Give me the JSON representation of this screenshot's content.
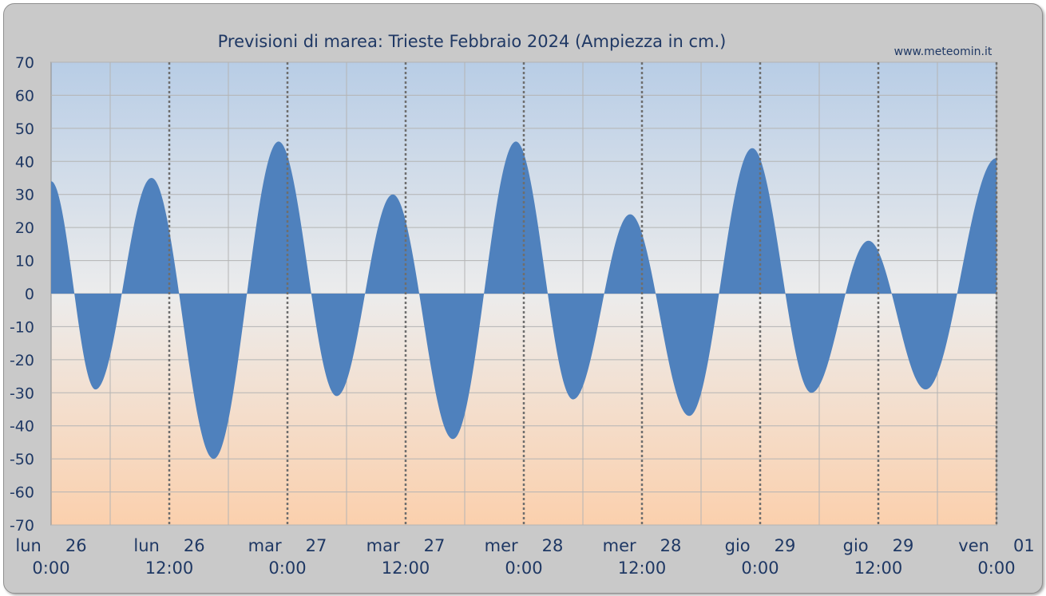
{
  "chart_data": {
    "type": "area",
    "title": "Previsioni di marea: Trieste Febbraio 2024 (Ampiezza in cm.)",
    "credit": "www.meteomin.it",
    "ylim": [
      -70,
      70
    ],
    "yticks": [
      70,
      60,
      50,
      40,
      30,
      20,
      10,
      0,
      -10,
      -20,
      -30,
      -40,
      -50,
      -60,
      -70
    ],
    "xlim_hours": [
      0,
      96
    ],
    "grid": true,
    "xticks": [
      {
        "hour": 0,
        "day": "lun",
        "date": "26",
        "time": "0:00"
      },
      {
        "hour": 12,
        "day": "lun",
        "date": "26",
        "time": "12:00"
      },
      {
        "hour": 24,
        "day": "mar",
        "date": "27",
        "time": "0:00"
      },
      {
        "hour": 36,
        "day": "mar",
        "date": "27",
        "time": "12:00"
      },
      {
        "hour": 48,
        "day": "mer",
        "date": "28",
        "time": "0:00"
      },
      {
        "hour": 60,
        "day": "mer",
        "date": "28",
        "time": "12:00"
      },
      {
        "hour": 72,
        "day": "gio",
        "date": "29",
        "time": "0:00"
      },
      {
        "hour": 84,
        "day": "gio",
        "date": "29",
        "time": "12:00"
      },
      {
        "hour": 96,
        "day": "ven",
        "date": "01",
        "time": "0:00"
      }
    ],
    "series": [
      {
        "color": "#4f81bd",
        "extremes": [
          {
            "hour": 0.0,
            "value": 34
          },
          {
            "hour": 4.5,
            "value": -29
          },
          {
            "hour": 10.2,
            "value": 35
          },
          {
            "hour": 16.5,
            "value": -50
          },
          {
            "hour": 23.1,
            "value": 46
          },
          {
            "hour": 29.0,
            "value": -31
          },
          {
            "hour": 34.7,
            "value": 30
          },
          {
            "hour": 40.8,
            "value": -44
          },
          {
            "hour": 47.2,
            "value": 46
          },
          {
            "hour": 53.0,
            "value": -32
          },
          {
            "hour": 58.8,
            "value": 24
          },
          {
            "hour": 64.8,
            "value": -37
          },
          {
            "hour": 71.2,
            "value": 44
          },
          {
            "hour": 77.2,
            "value": -30
          },
          {
            "hour": 83.0,
            "value": 16
          },
          {
            "hour": 88.8,
            "value": -29
          },
          {
            "hour": 96.0,
            "value": 41
          }
        ]
      }
    ]
  }
}
